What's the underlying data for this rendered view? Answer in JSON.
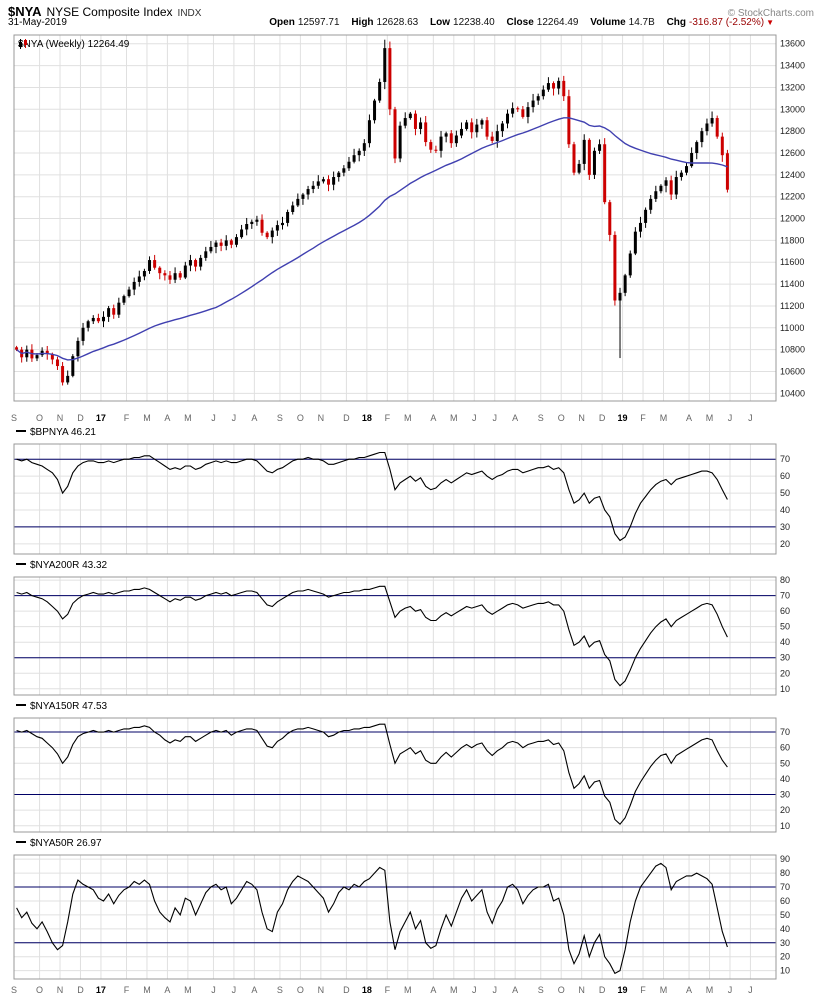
{
  "header": {
    "symbol": "$NYA",
    "name": "NYSE Composite Index",
    "exchange": "INDX",
    "date": "31-May-2019",
    "copyright": "© StockCharts.com",
    "quote": {
      "open_label": "Open",
      "open": "12597.71",
      "high_label": "High",
      "high": "12628.63",
      "low_label": "Low",
      "low": "12238.40",
      "close_label": "Close",
      "close": "12264.49",
      "volume_label": "Volume",
      "volume": "14.7B",
      "chg_label": "Chg",
      "chg": "-316.87 (-2.52%)",
      "chg_arrow": "▼"
    }
  },
  "colors": {
    "grid": "#e0e0e0",
    "border": "#999999",
    "up": "#000000",
    "down": "#cc0000",
    "ma": "#4040b0",
    "threshold": "#000066",
    "line": "#000000",
    "tick": "#222222"
  },
  "timeline": {
    "months": [
      {
        "label": "S",
        "weeks": 5
      },
      {
        "label": "O",
        "weeks": 4
      },
      {
        "label": "N",
        "weeks": 4
      },
      {
        "label": "D",
        "weeks": 4
      },
      {
        "label": "17",
        "weeks": 5,
        "year": true
      },
      {
        "label": "F",
        "weeks": 4
      },
      {
        "label": "M",
        "weeks": 4
      },
      {
        "label": "A",
        "weeks": 4
      },
      {
        "label": "M",
        "weeks": 5
      },
      {
        "label": "J",
        "weeks": 4
      },
      {
        "label": "J",
        "weeks": 4
      },
      {
        "label": "A",
        "weeks": 5
      },
      {
        "label": "S",
        "weeks": 4
      },
      {
        "label": "O",
        "weeks": 4
      },
      {
        "label": "N",
        "weeks": 5
      },
      {
        "label": "D",
        "weeks": 4
      },
      {
        "label": "18",
        "weeks": 4,
        "year": true
      },
      {
        "label": "F",
        "weeks": 4
      },
      {
        "label": "M",
        "weeks": 5
      },
      {
        "label": "A",
        "weeks": 4
      },
      {
        "label": "M",
        "weeks": 4
      },
      {
        "label": "J",
        "weeks": 4
      },
      {
        "label": "J",
        "weeks": 4
      },
      {
        "label": "A",
        "weeks": 5
      },
      {
        "label": "S",
        "weeks": 4
      },
      {
        "label": "O",
        "weeks": 4
      },
      {
        "label": "N",
        "weeks": 4
      },
      {
        "label": "D",
        "weeks": 4
      },
      {
        "label": "19",
        "weeks": 4,
        "year": true
      },
      {
        "label": "F",
        "weeks": 4
      },
      {
        "label": "M",
        "weeks": 5
      },
      {
        "label": "A",
        "weeks": 4
      },
      {
        "label": "M",
        "weeks": 4
      },
      {
        "label": "J",
        "weeks": 4
      },
      {
        "label": "J",
        "weeks": 5
      }
    ]
  },
  "chart_data": [
    {
      "type": "candlestick",
      "id": "nya",
      "legend": "$NYA (Weekly) 12264.49",
      "period": "Weekly",
      "ylim": [
        10330,
        13680
      ],
      "yticks": [
        10400,
        10600,
        10800,
        11000,
        11200,
        11400,
        11600,
        11800,
        12000,
        12200,
        12400,
        12600,
        12800,
        13000,
        13200,
        13400,
        13600
      ],
      "closes": [
        10800,
        10730,
        10800,
        10720,
        10750,
        10790,
        10760,
        10710,
        10650,
        10500,
        10560,
        10740,
        10880,
        11000,
        11060,
        11090,
        11060,
        11100,
        11180,
        11120,
        11230,
        11290,
        11350,
        11420,
        11470,
        11520,
        11620,
        11550,
        11500,
        11480,
        11440,
        11500,
        11460,
        11570,
        11620,
        11560,
        11640,
        11700,
        11740,
        11780,
        11750,
        11800,
        11760,
        11830,
        11900,
        11950,
        11970,
        11990,
        11870,
        11830,
        11890,
        11940,
        11960,
        12060,
        12120,
        12180,
        12220,
        12270,
        12300,
        12340,
        12360,
        12310,
        12380,
        12420,
        12460,
        12520,
        12580,
        12620,
        12690,
        12900,
        13080,
        13250,
        13560,
        13000,
        12550,
        12850,
        12920,
        12960,
        12820,
        12880,
        12700,
        12630,
        12620,
        12750,
        12780,
        12690,
        12760,
        12820,
        12880,
        12790,
        12860,
        12900,
        12750,
        12710,
        12800,
        12870,
        12960,
        13010,
        13000,
        12930,
        13020,
        13080,
        13120,
        13180,
        13240,
        13190,
        13260,
        13120,
        12680,
        12420,
        12500,
        12720,
        12400,
        12620,
        12680,
        12150,
        11850,
        11250,
        11320,
        11480,
        11680,
        11880,
        11960,
        12080,
        12180,
        12250,
        12300,
        12350,
        12220,
        12380,
        12420,
        12480,
        12600,
        12700,
        12800,
        12870,
        12920,
        12750,
        12580,
        12264.49
      ],
      "overrides": [
        {
          "i": 72,
          "high": 13637
        },
        {
          "i": 118,
          "low": 10723
        }
      ],
      "last_ohlc": {
        "open": 12597.71,
        "high": 12628.63,
        "low": 12238.4,
        "close": 12264.49
      },
      "ma": {
        "type": "sma",
        "period": 40
      }
    },
    {
      "type": "line",
      "id": "bpnya",
      "legend": "$BPNYA 46.21",
      "ylim": [
        14,
        79
      ],
      "yticks": [
        70,
        60,
        50,
        40,
        30,
        20
      ],
      "thresholds": [
        70,
        30
      ],
      "values": [
        70,
        69,
        70,
        68,
        67,
        66,
        64,
        62,
        58,
        50,
        54,
        62,
        66,
        68,
        69,
        69,
        68,
        68,
        69,
        68,
        69,
        70,
        70,
        71,
        71,
        72,
        72,
        70,
        68,
        66,
        64,
        65,
        64,
        66,
        66,
        64,
        65,
        67,
        68,
        69,
        68,
        69,
        68,
        68,
        69,
        70,
        70,
        69,
        66,
        63,
        62,
        64,
        65,
        67,
        69,
        70,
        70,
        71,
        70,
        70,
        69,
        67,
        67,
        68,
        69,
        70,
        70,
        71,
        71,
        72,
        73,
        74,
        74,
        64,
        52,
        56,
        58,
        60,
        57,
        59,
        54,
        52,
        53,
        56,
        58,
        56,
        58,
        60,
        62,
        61,
        62,
        63,
        60,
        58,
        60,
        61,
        63,
        64,
        64,
        62,
        63,
        64,
        65,
        65,
        66,
        64,
        65,
        62,
        52,
        44,
        46,
        50,
        44,
        47,
        48,
        40,
        36,
        26,
        22,
        24,
        30,
        38,
        44,
        48,
        52,
        55,
        57,
        58,
        55,
        58,
        59,
        60,
        61,
        62,
        63,
        63,
        62,
        58,
        52,
        46.21
      ]
    },
    {
      "type": "line",
      "id": "nya200r",
      "legend": "$NYA200R 43.32",
      "ylim": [
        6,
        82
      ],
      "yticks": [
        80,
        70,
        60,
        50,
        40,
        30,
        20,
        10
      ],
      "thresholds": [
        70,
        30
      ],
      "values": [
        72,
        71,
        72,
        70,
        69,
        68,
        66,
        63,
        60,
        55,
        58,
        65,
        68,
        70,
        71,
        72,
        71,
        71,
        72,
        71,
        72,
        73,
        73,
        74,
        74,
        75,
        74,
        72,
        70,
        68,
        66,
        68,
        67,
        69,
        69,
        67,
        68,
        70,
        71,
        72,
        71,
        72,
        70,
        71,
        72,
        73,
        73,
        72,
        68,
        64,
        63,
        66,
        68,
        70,
        72,
        73,
        73,
        74,
        73,
        72,
        71,
        69,
        70,
        71,
        72,
        72,
        73,
        73,
        74,
        74,
        75,
        76,
        76,
        66,
        56,
        60,
        62,
        63,
        60,
        61,
        56,
        54,
        54,
        57,
        59,
        57,
        59,
        61,
        63,
        62,
        63,
        64,
        60,
        58,
        60,
        62,
        64,
        65,
        64,
        62,
        63,
        64,
        65,
        65,
        66,
        64,
        64,
        60,
        48,
        38,
        40,
        44,
        37,
        40,
        41,
        32,
        28,
        16,
        12,
        15,
        22,
        30,
        36,
        41,
        46,
        50,
        53,
        55,
        50,
        54,
        56,
        58,
        60,
        62,
        64,
        65,
        64,
        58,
        50,
        43.32
      ]
    },
    {
      "type": "line",
      "id": "nya150r",
      "legend": "$NYA150R 47.53",
      "ylim": [
        6,
        79
      ],
      "yticks": [
        70,
        60,
        50,
        40,
        30,
        20,
        10
      ],
      "thresholds": [
        70,
        30
      ],
      "values": [
        71,
        70,
        71,
        69,
        67,
        66,
        63,
        60,
        56,
        50,
        54,
        62,
        67,
        69,
        70,
        71,
        70,
        70,
        71,
        70,
        71,
        72,
        72,
        73,
        73,
        74,
        73,
        70,
        68,
        65,
        63,
        65,
        64,
        67,
        67,
        64,
        66,
        68,
        70,
        71,
        70,
        71,
        68,
        70,
        71,
        72,
        72,
        71,
        66,
        61,
        60,
        64,
        66,
        69,
        71,
        72,
        72,
        73,
        72,
        71,
        70,
        67,
        68,
        70,
        71,
        71,
        72,
        72,
        73,
        73,
        74,
        75,
        75,
        62,
        50,
        56,
        58,
        60,
        56,
        58,
        52,
        50,
        50,
        54,
        57,
        54,
        57,
        60,
        62,
        60,
        62,
        63,
        58,
        55,
        58,
        60,
        63,
        64,
        63,
        60,
        62,
        63,
        64,
        64,
        65,
        62,
        63,
        58,
        44,
        34,
        37,
        42,
        34,
        38,
        39,
        29,
        25,
        14,
        11,
        15,
        23,
        32,
        38,
        43,
        48,
        52,
        55,
        56,
        50,
        55,
        57,
        59,
        61,
        63,
        65,
        66,
        65,
        58,
        52,
        47.53
      ]
    },
    {
      "type": "line",
      "id": "nya50r",
      "legend": "$NYA50R 26.97",
      "ylim": [
        4,
        93
      ],
      "yticks": [
        90,
        80,
        70,
        60,
        50,
        40,
        30,
        20,
        10
      ],
      "thresholds": [
        70,
        30
      ],
      "values": [
        55,
        48,
        52,
        44,
        40,
        45,
        38,
        30,
        25,
        28,
        45,
        65,
        75,
        72,
        70,
        68,
        62,
        60,
        65,
        58,
        64,
        68,
        70,
        74,
        72,
        75,
        72,
        60,
        52,
        48,
        45,
        55,
        50,
        62,
        60,
        50,
        58,
        66,
        70,
        72,
        68,
        70,
        58,
        62,
        68,
        74,
        72,
        68,
        52,
        40,
        38,
        52,
        58,
        68,
        74,
        78,
        76,
        74,
        70,
        66,
        62,
        52,
        58,
        66,
        70,
        68,
        72,
        70,
        74,
        76,
        80,
        84,
        82,
        45,
        25,
        38,
        45,
        52,
        40,
        46,
        30,
        26,
        28,
        40,
        50,
        42,
        52,
        62,
        68,
        60,
        64,
        68,
        52,
        44,
        54,
        60,
        70,
        72,
        68,
        58,
        64,
        68,
        70,
        70,
        72,
        60,
        62,
        50,
        25,
        15,
        22,
        35,
        20,
        30,
        36,
        20,
        15,
        8,
        10,
        25,
        45,
        60,
        70,
        75,
        80,
        85,
        87,
        84,
        68,
        74,
        76,
        78,
        78,
        80,
        78,
        76,
        72,
        55,
        38,
        26.97
      ]
    }
  ]
}
